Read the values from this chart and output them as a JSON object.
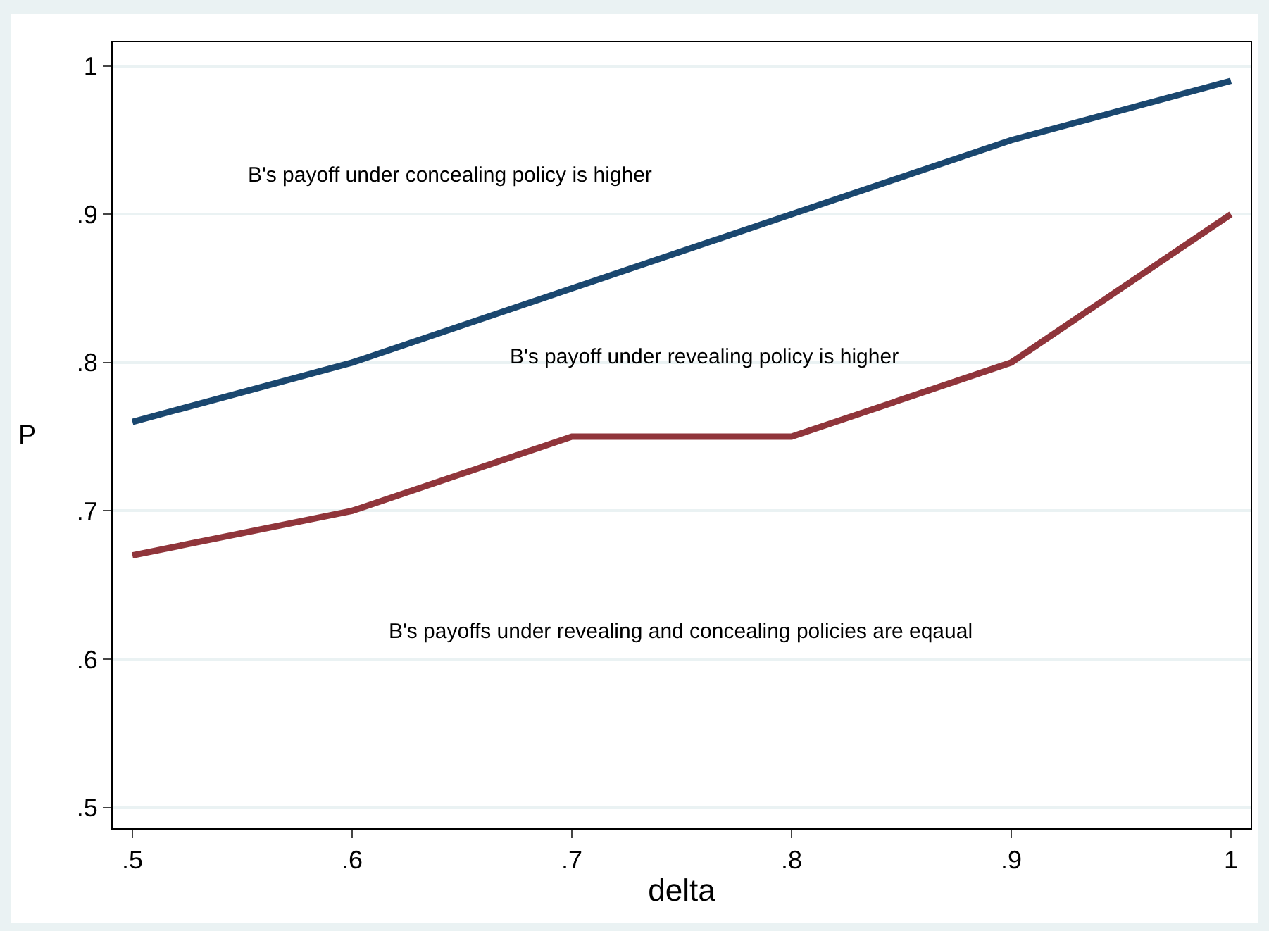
{
  "chart_data": {
    "type": "line",
    "xlabel": "delta",
    "ylabel": "P",
    "x": [
      0.5,
      0.6,
      0.7,
      0.8,
      0.9,
      1
    ],
    "series": [
      {
        "color": "#1a476f",
        "values": [
          0.76,
          0.8,
          0.85,
          0.9,
          0.95,
          0.99
        ]
      },
      {
        "color": "#90353b",
        "values": [
          0.67,
          0.7,
          0.75,
          0.75,
          0.8,
          0.9
        ]
      }
    ],
    "xlim": [
      0.491,
      1.009
    ],
    "ylim": [
      0.486,
      1.016
    ],
    "xticks": [
      {
        "value": 0.5,
        "label": ".5"
      },
      {
        "value": 0.6,
        "label": ".6"
      },
      {
        "value": 0.7,
        "label": ".7"
      },
      {
        "value": 0.8,
        "label": ".8"
      },
      {
        "value": 0.9,
        "label": ".9"
      },
      {
        "value": 1,
        "label": "1"
      }
    ],
    "yticks": [
      {
        "value": 0.5,
        "label": ".5"
      },
      {
        "value": 0.6,
        "label": ".6"
      },
      {
        "value": 0.7,
        "label": ".7"
      },
      {
        "value": 0.8,
        "label": ".8"
      },
      {
        "value": 0.9,
        "label": ".9"
      },
      {
        "value": 1,
        "label": "1"
      }
    ],
    "grid": "y",
    "marker": "none",
    "line_style": "solid",
    "annotations": [
      "B's payoff under concealing policy is higher",
      "B's payoff under revealing policy is higher",
      "B's payoffs under revealing and concealing policies are eqaual"
    ]
  }
}
